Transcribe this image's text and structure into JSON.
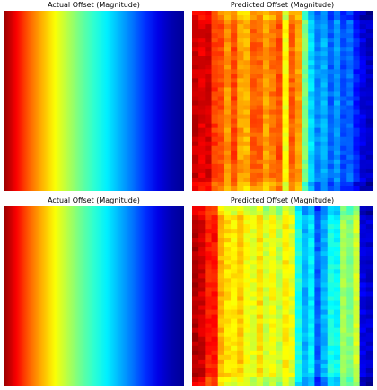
{
  "chart_data": [
    {
      "type": "heatmap",
      "title": "Actual Offset (Magnitude)",
      "colormap": "jet",
      "column_values": [
        0.98,
        0.88,
        0.78,
        0.7,
        0.62,
        0.55,
        0.48,
        0.42,
        0.36,
        0.3,
        0.24,
        0.17,
        0.1,
        0.05,
        0.02
      ],
      "noise": 0
    },
    {
      "type": "heatmap",
      "title": "Predicted Offset (Magnitude)",
      "colormap": "jet",
      "column_values": [
        0.93,
        0.9,
        0.91,
        0.82,
        0.8,
        0.73,
        0.81,
        0.72,
        0.7,
        0.79,
        0.78,
        0.72,
        0.76,
        0.8,
        0.62,
        0.78,
        0.72,
        0.5,
        0.34,
        0.26,
        0.3,
        0.22,
        0.28,
        0.2,
        0.23,
        0.15,
        0.1,
        0.07
      ],
      "noise": 0.06
    },
    {
      "type": "heatmap",
      "title": "Actual Offset (Magnitude)",
      "colormap": "jet",
      "column_values": [
        0.98,
        0.88,
        0.78,
        0.7,
        0.62,
        0.55,
        0.48,
        0.42,
        0.36,
        0.3,
        0.24,
        0.17,
        0.1,
        0.05,
        0.02
      ],
      "noise": 0
    },
    {
      "type": "heatmap",
      "title": "Predicted Offset (Magnitude)",
      "colormap": "jet",
      "column_values": [
        0.95,
        0.92,
        0.85,
        0.86,
        0.7,
        0.66,
        0.64,
        0.68,
        0.62,
        0.6,
        0.66,
        0.58,
        0.62,
        0.56,
        0.64,
        0.6,
        0.4,
        0.3,
        0.36,
        0.22,
        0.3,
        0.4,
        0.38,
        0.54,
        0.5,
        0.58,
        0.1,
        0.08
      ],
      "noise": 0.06
    }
  ]
}
